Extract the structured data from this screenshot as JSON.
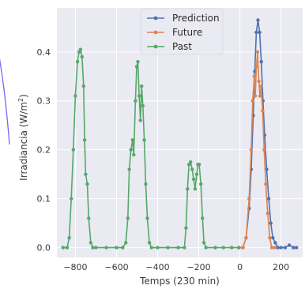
{
  "chart_data": {
    "type": "line",
    "xlabel": "Temps (230 min)",
    "ylabel_text": "Irradiancia (W/m",
    "ylabel_sup": "2",
    "ylabel_close": ")",
    "xlim": [
      -890,
      305
    ],
    "ylim": [
      -0.02,
      0.49
    ],
    "xticks": [
      -800,
      -600,
      -400,
      -200,
      0,
      200
    ],
    "xtick_labels": [
      "−800",
      "−600",
      "−400",
      "−200",
      "0",
      "200"
    ],
    "yticks": [
      0.0,
      0.1,
      0.2,
      0.3,
      0.4
    ],
    "ytick_labels": [
      "0.0",
      "0.1",
      "0.2",
      "0.3",
      "0.4"
    ],
    "grid": true,
    "legend_position": "top-center",
    "series": [
      {
        "name": "Prediction",
        "color": "#4c72b0",
        "points": [
          [
            -5,
            0
          ],
          [
            15,
            0
          ],
          [
            30,
            0.02
          ],
          [
            45,
            0.08
          ],
          [
            55,
            0.16
          ],
          [
            65,
            0.27
          ],
          [
            72,
            0.36
          ],
          [
            80,
            0.44
          ],
          [
            88,
            0.465
          ],
          [
            96,
            0.44
          ],
          [
            104,
            0.38
          ],
          [
            112,
            0.3
          ],
          [
            120,
            0.23
          ],
          [
            130,
            0.16
          ],
          [
            140,
            0.1
          ],
          [
            150,
            0.05
          ],
          [
            160,
            0.02
          ],
          [
            172,
            0.01
          ],
          [
            185,
            0
          ],
          [
            200,
            0
          ],
          [
            220,
            0
          ],
          [
            240,
            0.005
          ],
          [
            260,
            0
          ],
          [
            275,
            0
          ]
        ]
      },
      {
        "name": "Future",
        "color": "#dd8452",
        "points": [
          [
            -5,
            0
          ],
          [
            15,
            0
          ],
          [
            30,
            0.02
          ],
          [
            45,
            0.1
          ],
          [
            55,
            0.2
          ],
          [
            62,
            0.3
          ],
          [
            70,
            0.35
          ],
          [
            75,
            0.31
          ],
          [
            80,
            0.37
          ],
          [
            86,
            0.4
          ],
          [
            92,
            0.34
          ],
          [
            98,
            0.31
          ],
          [
            104,
            0.33
          ],
          [
            110,
            0.28
          ],
          [
            118,
            0.2
          ],
          [
            126,
            0.13
          ],
          [
            135,
            0.07
          ],
          [
            145,
            0.02
          ],
          [
            155,
            0
          ],
          [
            170,
            0
          ]
        ]
      },
      {
        "name": "Past",
        "color": "#55a868",
        "points": [
          [
            -860,
            0
          ],
          [
            -840,
            0
          ],
          [
            -830,
            0.02
          ],
          [
            -820,
            0.1
          ],
          [
            -810,
            0.2
          ],
          [
            -800,
            0.31
          ],
          [
            -790,
            0.38
          ],
          [
            -782,
            0.4
          ],
          [
            -775,
            0.405
          ],
          [
            -768,
            0.39
          ],
          [
            -760,
            0.33
          ],
          [
            -755,
            0.22
          ],
          [
            -750,
            0.15
          ],
          [
            -742,
            0.13
          ],
          [
            -735,
            0.06
          ],
          [
            -725,
            0.01
          ],
          [
            -715,
            0
          ],
          [
            -700,
            0
          ],
          [
            -650,
            0
          ],
          [
            -600,
            0
          ],
          [
            -570,
            0
          ],
          [
            -555,
            0.01
          ],
          [
            -545,
            0.06
          ],
          [
            -538,
            0.16
          ],
          [
            -530,
            0.2
          ],
          [
            -522,
            0.22
          ],
          [
            -516,
            0.19
          ],
          [
            -508,
            0.3
          ],
          [
            -502,
            0.37
          ],
          [
            -496,
            0.38
          ],
          [
            -490,
            0.31
          ],
          [
            -484,
            0.26
          ],
          [
            -478,
            0.33
          ],
          [
            -472,
            0.29
          ],
          [
            -465,
            0.22
          ],
          [
            -458,
            0.13
          ],
          [
            -450,
            0.06
          ],
          [
            -440,
            0.01
          ],
          [
            -430,
            0
          ],
          [
            -400,
            0
          ],
          [
            -350,
            0
          ],
          [
            -300,
            0
          ],
          [
            -270,
            0
          ],
          [
            -262,
            0.04
          ],
          [
            -255,
            0.12
          ],
          [
            -248,
            0.17
          ],
          [
            -240,
            0.175
          ],
          [
            -232,
            0.16
          ],
          [
            -225,
            0.14
          ],
          [
            -218,
            0.12
          ],
          [
            -210,
            0.15
          ],
          [
            -204,
            0.17
          ],
          [
            -198,
            0.17
          ],
          [
            -190,
            0.13
          ],
          [
            -182,
            0.06
          ],
          [
            -175,
            0.01
          ],
          [
            -165,
            0
          ],
          [
            -120,
            0
          ],
          [
            -80,
            0
          ],
          [
            -40,
            0
          ],
          [
            -5,
            0
          ]
        ]
      }
    ]
  }
}
